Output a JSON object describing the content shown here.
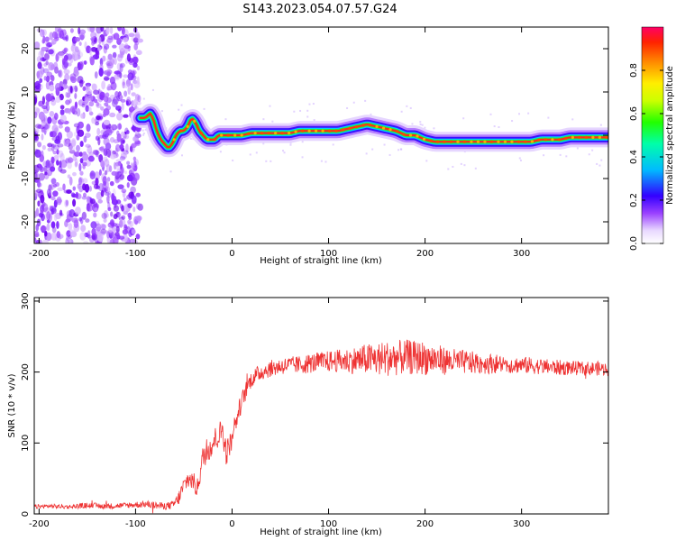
{
  "title": "S143.2023.054.07.57.G24",
  "chart_data": [
    {
      "type": "heatmap",
      "xlabel": "Height of straight line (km)",
      "ylabel": "Frequency (Hz)",
      "xlim": [
        -205,
        390
      ],
      "ylim": [
        -25,
        25
      ],
      "xticks": [
        -200,
        -100,
        0,
        100,
        200,
        300
      ],
      "yticks": [
        -20,
        -10,
        0,
        10,
        20
      ],
      "grid": false,
      "noise_region_x": [
        -205,
        -95
      ],
      "ridge": {
        "x": [
          -95,
          -90,
          -85,
          -82,
          -78,
          -74,
          -70,
          -66,
          -62,
          -58,
          -54,
          -50,
          -46,
          -42,
          -38,
          -34,
          -30,
          -26,
          -22,
          -18,
          -14,
          -10,
          0,
          10,
          20,
          30,
          40,
          50,
          60,
          70,
          80,
          90,
          100,
          110,
          120,
          130,
          140,
          150,
          160,
          170,
          180,
          190,
          200,
          210,
          220,
          230,
          240,
          250,
          260,
          270,
          280,
          290,
          300,
          310,
          320,
          330,
          340,
          350,
          360,
          370,
          380,
          390
        ],
        "y": [
          4,
          4,
          5,
          4,
          1,
          -1,
          -2,
          -3,
          -2,
          0,
          1,
          1,
          2,
          4,
          3,
          1,
          0,
          -1,
          -1,
          -1,
          0,
          0,
          0,
          0,
          0.5,
          0.5,
          0.5,
          0.5,
          0.5,
          1,
          1,
          1,
          1,
          1,
          1.5,
          2,
          2.5,
          2,
          1.5,
          1,
          0,
          0,
          -1,
          -1.5,
          -1.5,
          -1.5,
          -1.5,
          -1.5,
          -1.5,
          -1.5,
          -1.5,
          -1.5,
          -1.5,
          -1.5,
          -1,
          -1,
          -1,
          -0.5,
          -0.5,
          -0.5,
          -0.5,
          -0.5
        ]
      },
      "colorbar": {
        "label": "Normalized spectral amplitude",
        "ticks": [
          "0.0",
          "0.2",
          "0.4",
          "0.6",
          "0.8"
        ],
        "tick_values": [
          0.0,
          0.2,
          0.4,
          0.6,
          0.8
        ],
        "range": [
          0,
          1
        ]
      }
    },
    {
      "type": "line",
      "xlabel": "Height of straight line (km)",
      "ylabel": "SNR (10 * v/v)",
      "xlim": [
        -205,
        390
      ],
      "ylim": [
        0,
        305
      ],
      "xticks": [
        -200,
        -100,
        0,
        100,
        200,
        300
      ],
      "yticks": [
        0,
        100,
        200,
        300
      ],
      "grid": false,
      "series": [
        {
          "color": "#ee3333",
          "x": [
            -205,
            -190,
            -170,
            -150,
            -130,
            -110,
            -90,
            -80,
            -70,
            -62,
            -56,
            -50,
            -45,
            -40,
            -36,
            -33,
            -30,
            -26,
            -22,
            -18,
            -14,
            -10,
            -6,
            -2,
            0,
            4,
            8,
            12,
            16,
            20,
            25,
            30,
            40,
            50,
            60,
            70,
            80,
            90,
            100,
            110,
            120,
            130,
            140,
            150,
            160,
            170,
            180,
            190,
            200,
            210,
            220,
            230,
            240,
            250,
            260,
            270,
            280,
            290,
            300,
            310,
            320,
            330,
            340,
            350,
            360,
            370,
            380,
            390
          ],
          "y": [
            10,
            11,
            10,
            12,
            11,
            12,
            14,
            12,
            11,
            12,
            20,
            40,
            50,
            45,
            35,
            60,
            80,
            90,
            95,
            105,
            110,
            120,
            85,
            100,
            115,
            130,
            150,
            165,
            180,
            190,
            195,
            200,
            205,
            208,
            210,
            210,
            212,
            214,
            215,
            216,
            216,
            217,
            218,
            218,
            219,
            220,
            221,
            220,
            220,
            218,
            216,
            215,
            214,
            213,
            212,
            212,
            211,
            210,
            210,
            209,
            208,
            207,
            206,
            206,
            205,
            205,
            205,
            204
          ],
          "noise": [
            3,
            3,
            3,
            4,
            4,
            4,
            5,
            5,
            5,
            6,
            10,
            12,
            14,
            14,
            14,
            16,
            18,
            18,
            18,
            18,
            18,
            18,
            18,
            16,
            16,
            14,
            14,
            14,
            12,
            12,
            12,
            12,
            12,
            12,
            12,
            13,
            14,
            14,
            15,
            16,
            18,
            20,
            22,
            24,
            25,
            25,
            25,
            24,
            24,
            22,
            20,
            18,
            17,
            16,
            15,
            14,
            13,
            12,
            12,
            12,
            11,
            11,
            11,
            10,
            10,
            10,
            10,
            10
          ]
        }
      ]
    }
  ]
}
